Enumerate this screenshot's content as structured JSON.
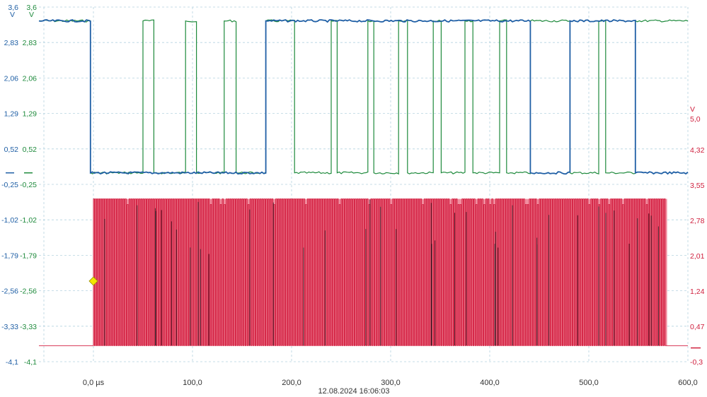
{
  "chart_data": {
    "type": "line",
    "timestamp": "12.08.2024 16:06:03",
    "x_axis": {
      "unit": "µs",
      "range": [
        -55,
        600
      ],
      "ticks": [
        0,
        100,
        200,
        300,
        400,
        500,
        600
      ],
      "tick_labels": [
        "0,0 µs",
        "100,0",
        "200,0",
        "300,0",
        "400,0",
        "500,0",
        "600,0"
      ]
    },
    "left_axis_blue": {
      "color": "#1f5fa5",
      "unit": "V",
      "range": [
        -4.1,
        3.6
      ],
      "ticks": [
        3.6,
        2.83,
        2.06,
        1.29,
        0.52,
        -0.25,
        -1.02,
        -1.79,
        -2.56,
        -3.33,
        -4.1
      ],
      "tick_labels": [
        "3,6",
        "2,83",
        "2,06",
        "1,29",
        "0,52",
        "-0,25",
        "-1,02",
        "-1,79",
        "-2,56",
        "-3,33",
        "-4,1"
      ]
    },
    "left_axis_green": {
      "color": "#1e8a3c",
      "unit": "V",
      "range": [
        -4.1,
        3.6
      ],
      "ticks": [
        3.6,
        2.83,
        2.06,
        1.29,
        0.52,
        -0.25,
        -1.02,
        -1.79,
        -2.56,
        -3.33,
        -4.1
      ],
      "tick_labels": [
        "3,6",
        "2,83",
        "2,06",
        "1,29",
        "0,52",
        "-0,25",
        "-1,02",
        "-1,79",
        "-2,56",
        "-3,33",
        "-4,1"
      ]
    },
    "right_axis_red": {
      "color": "#cf1f3d",
      "unit": "V",
      "range": [
        -0.3,
        5.0
      ],
      "ticks": [
        5.0,
        4.32,
        3.55,
        2.78,
        2.01,
        1.24,
        0.47,
        -0.3
      ],
      "tick_labels": [
        "5,0",
        "4,32",
        "3,55",
        "2,78",
        "2,01",
        "1,24",
        "0,47",
        "-0,3"
      ]
    },
    "ground_marker_value": 0.0,
    "trigger": {
      "time": 0.0,
      "value": -2.35,
      "color": "#f3e600"
    },
    "series": [
      {
        "color": "#1f5fa5",
        "axis": "left_axis_blue",
        "low": 0.0,
        "high": 3.3,
        "initial_level": "high",
        "transitions": [
          -3,
          174,
          441,
          481,
          547
        ],
        "end": 600
      },
      {
        "color": "#1e8a3c",
        "axis": "left_axis_green",
        "low": 0.0,
        "high": 3.3,
        "initial_level": "high",
        "transitions": [
          -3,
          50,
          61,
          93,
          104,
          132,
          144,
          174,
          203,
          240,
          246,
          277,
          283,
          308,
          317,
          343,
          351,
          375,
          383,
          410,
          417,
          441,
          481,
          510,
          517,
          547
        ],
        "end": 600
      },
      {
        "color": "#d1173a",
        "axis": "right_axis_red",
        "low": 0.05,
        "high": 3.25,
        "active_range": [
          0,
          579
        ],
        "edges_per_us": 0.5
      }
    ]
  }
}
